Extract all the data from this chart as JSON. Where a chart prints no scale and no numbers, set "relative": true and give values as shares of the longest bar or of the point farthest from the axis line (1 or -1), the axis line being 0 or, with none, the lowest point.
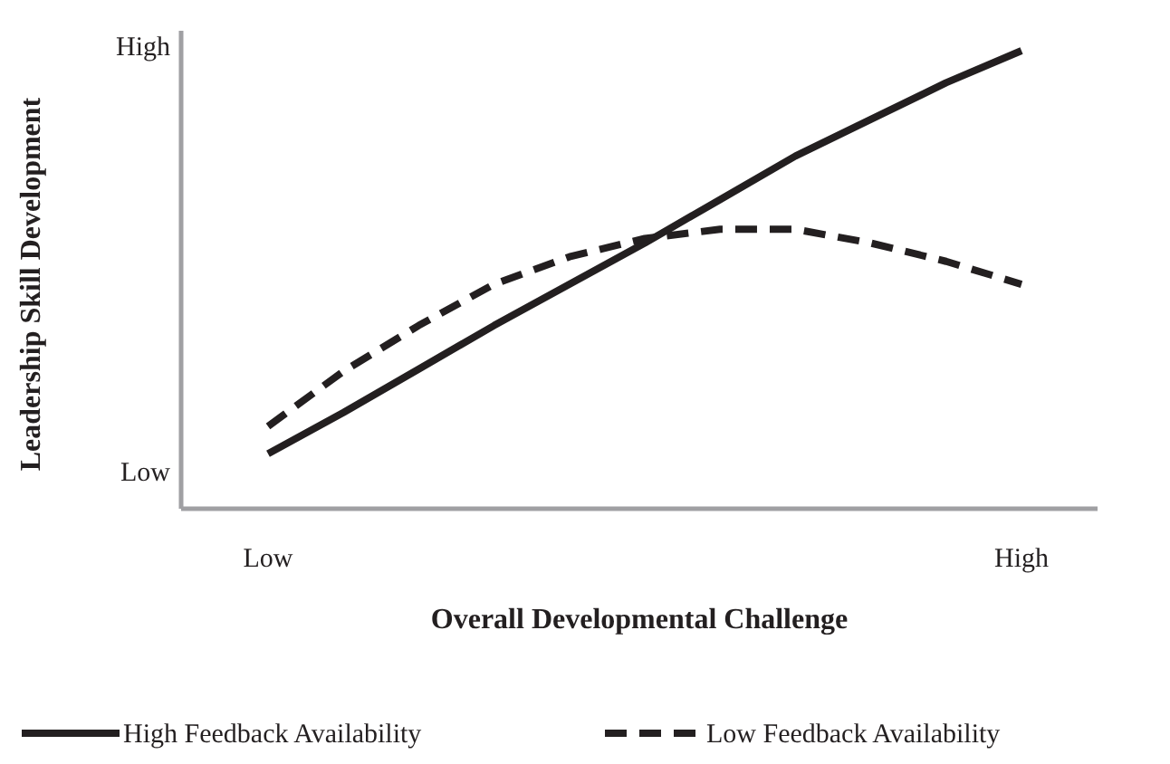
{
  "chart_data": {
    "type": "line",
    "xlabel": "Overall Developmental Challenge",
    "ylabel": "Leadership Skill Development",
    "relative": true,
    "categories": [
      "Low",
      null,
      null,
      null,
      null,
      null,
      null,
      null,
      null,
      null,
      "High"
    ],
    "annotations": [
      "High",
      "Low"
    ],
    "series": [
      {
        "name": "High Feedback Availability",
        "color": "#231f20",
        "line_style": "solid",
        "values": [
          0.12,
          0.21,
          0.305,
          0.4,
          0.49,
          0.58,
          0.675,
          0.77,
          0.85,
          0.93,
          1
        ]
      },
      {
        "name": "Low Feedback Availability",
        "color": "#231f20",
        "line_style": "dashed",
        "values": [
          0.18,
          0.3,
          0.4,
          0.49,
          0.55,
          0.59,
          0.61,
          0.61,
          0.58,
          0.54,
          0.49
        ]
      }
    ],
    "legend": "bottom"
  }
}
